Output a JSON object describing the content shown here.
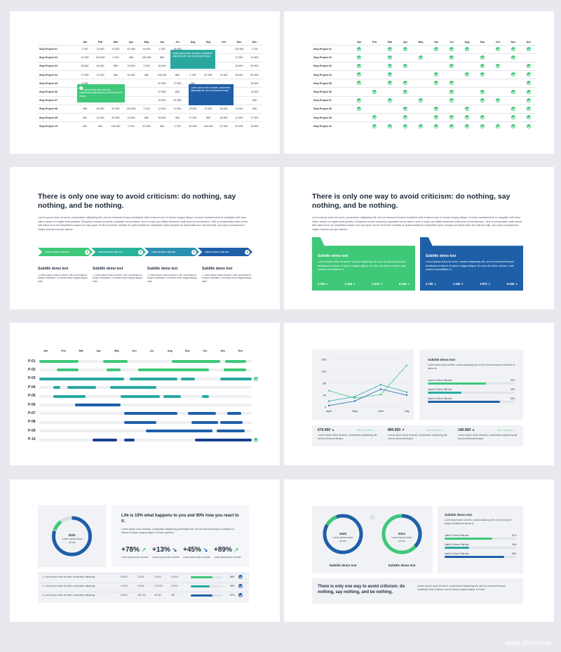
{
  "months": [
    "Jan",
    "Feb",
    "Mar",
    "Apr",
    "May",
    "Jun",
    "Jul",
    "Aug",
    "Sep",
    "Oct",
    "Nov",
    "Dec"
  ],
  "slide1": {
    "rows": [
      {
        "label": "Step Project 01",
        "cells": [
          "2.700",
          "13.900",
          "13.900",
          "87.905",
          "34.900",
          "2.700",
          "34.900",
          "",
          "",
          "",
          "134.900",
          "2.700"
        ]
      },
      {
        "label": "Step Project 02",
        "cells": [
          "12.900",
          "134.900",
          "2.700",
          "960",
          "134.900",
          "850",
          "2.700",
          "",
          "",
          "",
          "17.900",
          "12.900"
        ]
      },
      {
        "label": "Step Project 03",
        "cells": [
          "25.800",
          "34.900",
          "850",
          "13.900",
          "2.700",
          "34.900",
          "17.900",
          "",
          "",
          "",
          "34.900",
          "87.905"
        ]
      },
      {
        "label": "Step Project 04",
        "cells": [
          "17.900",
          "12.900",
          "960",
          "34.900",
          "960",
          "134.900",
          "850",
          "2.700",
          "87.905",
          "13.900",
          "34.900",
          "87.905"
        ]
      },
      {
        "label": "Step Project 05",
        "cells": [
          "6.099",
          "",
          "",
          "",
          "",
          "87.905",
          "17.900",
          "960",
          "",
          "",
          "",
          "34.900"
        ]
      },
      {
        "label": "Step Project 06",
        "cells": [
          "23.900",
          "",
          "",
          "",
          "",
          "87.905",
          "850",
          "87.905",
          "",
          "",
          "",
          "13.900"
        ]
      },
      {
        "label": "Step Project 07",
        "cells": [
          "12.098",
          "",
          "",
          "",
          "",
          "34.900",
          "87.905",
          "87.905",
          "",
          "",
          "",
          "960"
        ]
      },
      {
        "label": "Step Project 08",
        "cells": [
          "456",
          "34.900",
          "87.905",
          "134.900",
          "2.700",
          "12.900",
          "12.900",
          "13.900",
          "12.900",
          "34.900",
          "13.900",
          "960"
        ]
      },
      {
        "label": "Step Project 09",
        "cells": [
          "300",
          "12.900",
          "87.905",
          "13.900",
          "960",
          "34.900",
          "960",
          "17.900",
          "850",
          "34.900",
          "12.900",
          "17.900"
        ]
      },
      {
        "label": "Step Project 10",
        "cells": [
          "450",
          "960",
          "134.900",
          "2.700",
          "87.905",
          "960",
          "2.700",
          "87.905",
          "134.900",
          "87.905",
          "87.905",
          "34.900"
        ]
      }
    ],
    "callout_a": "Lorem ipsum dolor sit amet, consectetur adipiscing elit, sed do eiusmod tempor",
    "callout_b": "Lorem ipsum dolor sit amet, consectetur adipiscing elit, sed do eiusmod tempor",
    "callout_c": "Lorem ipsum dolor sit amet, consectetur adipiscing elit, sed do eiusmod tempor"
  },
  "slide2": {
    "labels": [
      "Step Project 01",
      "Step Project 02",
      "Step Project 03",
      "Step Project 04",
      "Step Project 05",
      "Step Project 06",
      "Step Project 07",
      "Step Project 08",
      "Step Project 09",
      "Step Project 10"
    ],
    "checks": [
      [
        1,
        0,
        1,
        1,
        0,
        1,
        1,
        1,
        0,
        1,
        1,
        1
      ],
      [
        1,
        0,
        1,
        0,
        1,
        0,
        1,
        0,
        1,
        0,
        1,
        0
      ],
      [
        1,
        0,
        1,
        1,
        0,
        0,
        1,
        0,
        1,
        1,
        0,
        1
      ],
      [
        1,
        0,
        1,
        0,
        0,
        1,
        0,
        1,
        1,
        0,
        1,
        1
      ],
      [
        1,
        0,
        1,
        1,
        0,
        1,
        1,
        0,
        0,
        0,
        0,
        1
      ],
      [
        0,
        1,
        0,
        1,
        0,
        0,
        1,
        0,
        1,
        0,
        1,
        1
      ],
      [
        1,
        0,
        1,
        0,
        1,
        0,
        1,
        0,
        1,
        1,
        0,
        1
      ],
      [
        1,
        0,
        0,
        1,
        0,
        1,
        0,
        1,
        0,
        0,
        1,
        1
      ],
      [
        0,
        1,
        0,
        1,
        0,
        1,
        1,
        1,
        1,
        0,
        1,
        1
      ],
      [
        0,
        1,
        1,
        1,
        1,
        1,
        1,
        1,
        1,
        1,
        1,
        1
      ]
    ]
  },
  "headline": "There is only one way to avoid criticism: do nothing, say nothing, and be nothing.",
  "paragraph": "Lorem ipsum dolor sit amet, consectetur adipiscing elit, sed do eiusmod tempor incididunt velit ut labore non et dolore magna aliqua. Ut enim reprehenderit in voluptate velit esse cillum dolore eu fugiat nulla pariatur. Excepteur nosint occaecat cupidatat non proident, sunt in culpa qui officia deserunt mollit anim id est laborum. Sed ut perspiciatis unde omnis iste natus error sit voluptatem seque non quo quae ab illo inventore veritatis et quasi architecto voluptatem quia voluptas sit aspernatur aut odit aut fugit, sed quia consequuntur magni dolores eos qui ratione.",
  "slide3": {
    "steps": [
      {
        "label": "Label 01 Demo Title text",
        "num": "1"
      },
      {
        "label": "Label 02 Demo Title text",
        "num": "2"
      },
      {
        "label": "Label 03 Demo Title text",
        "num": "3"
      },
      {
        "label": "Label 04 Demo Title text",
        "num": "4"
      }
    ],
    "subtitle": "Subtitle demo text",
    "bullets": "• Lorem ipsum dolor sit amet • Elit, sed eiusmod tempor incididunt • Ut labore dolor magna aliqua enim"
  },
  "slide4": {
    "subtitle": "Subtitle demo text",
    "body": "Lorem ipsum dolor sit amet, constur adipiscing elit, sed do eiusmod tempor incididunt ut labore et dolore magna aliqua. Ut enim ad minim veniam, quis nostrud exercitation ul.",
    "body_b": "Lorem ipsum dolor sit amet, constur adipiscing elit, sed do eiusmod tempor incididunt ut labore et dolore magna aliqua. Ut enim ad minim veniam, quis nostrud exercitation ul.",
    "nums": [
      "2.700 ↘",
      "1.180 ↗",
      "3.970 ↗",
      "9.150 ↘"
    ]
  },
  "slide5": {
    "labels": [
      "P-01",
      "P-02",
      "P-03",
      "P-04",
      "P-05",
      "P-06",
      "P-07",
      "P-08",
      "P-09",
      "P-10"
    ]
  },
  "slide6": {
    "chart_data": {
      "type": "line",
      "categories": [
        "April",
        "May",
        "June",
        "July"
      ],
      "yticks": [
        "0",
        "40",
        "80",
        "120",
        "160"
      ],
      "ylim": [
        0,
        160
      ],
      "series": [
        {
          "values": [
            55,
            30,
            42,
            140
          ],
          "color": "#3ec878"
        },
        {
          "values": [
            20,
            35,
            75,
            50
          ],
          "color": "#2aa8a0"
        },
        {
          "values": [
            5,
            20,
            60,
            40
          ],
          "color": "#1e5fa8"
        }
      ]
    },
    "subtitle": "Subtitle demo text",
    "body": "Lorem ipsum dolor sit amet, constur adipiscing elit, sed do eiusmod tempor incididunt ut labore et.",
    "bars": [
      {
        "label": "Label 01 Demo Title text",
        "pct": "67%",
        "value": 0.67,
        "color": "#3ec878"
      },
      {
        "label": "Label 01 Demo Title text",
        "pct": "39%",
        "value": 0.39,
        "color": "#2aa8a0"
      },
      {
        "label": "Label 01 Demo Title text",
        "pct": "83%",
        "value": 0.83,
        "color": "#1e5fa8"
      }
    ],
    "stats": [
      {
        "value": "670.000 ↘",
        "more": "More information →",
        "text": "Lorem ipsum dolor sit amet, consectetur adipiscing elit, sed do eiusmod tempor"
      },
      {
        "value": "890.000 ↗",
        "more": "More information →",
        "text": "Lorem ipsum dolor sit amet, consectetur adipiscing elit, sed do eiusmod tempor"
      },
      {
        "value": "140.000 ↘",
        "more": "More information →",
        "text": "Lorem ipsum dolor sit amet, consectetur adipiscing elit, sed do eiusmod tempor"
      }
    ]
  },
  "slide7": {
    "year": "2020",
    "ring_text": "Lorem ipsum dolor sit am",
    "quote": "Life is 10% what happens to you and 90% how you react to it.",
    "body": "Lorem ipsum dolor sit amet, consectetur adipiscing prehenderit elit, sed do eiusmod tempor incididunt ut labore et dolore magna aliqua. Ut enim reprehen",
    "kpis": [
      {
        "v": "+78%",
        "a": "↗",
        "t": "Lorem ipsum dolor sit amet"
      },
      {
        "v": "+13%",
        "a": "↘",
        "t": "Lorem ipsum dolor sit amet"
      },
      {
        "v": "+45%",
        "a": "↘",
        "t": "Lorem ipsum dolor sit amet"
      },
      {
        "v": "+89%",
        "a": "↗",
        "t": "Lorem ipsum dolor sit amet"
      }
    ],
    "table": [
      {
        "n": "1. Lorem ipsum dolor sit amet, consectetur adipiscing",
        "c": [
          "15.900",
          "23.900",
          "16.900",
          "23.900"
        ],
        "pct": "68%",
        "value": 0.68,
        "color": "#3ec878"
      },
      {
        "n": "2. Lorem ipsum dolor sit amet, consectetur adipiscing",
        "c": [
          "13.900",
          "14.900",
          "170.900",
          "12.900"
        ],
        "pct": "59%",
        "value": 0.59,
        "color": "#2aa8a0"
      },
      {
        "n": "3. Lorem ipsum dolor sit amet, consectetur adipiscing",
        "c": [
          "10.900",
          "135.750",
          "25.780",
          "980"
        ],
        "pct": "67%",
        "value": 0.67,
        "color": "#1e5fa8"
      }
    ]
  },
  "slide8": {
    "years": [
      "2020",
      "2021"
    ],
    "ring_text": "Lorem ipsum dolor sit am",
    "cap": "Subtitle demo text",
    "subtitle": "Subtitle demo text",
    "body": "Lorem ipsum dolor sit amet, constur adipiscing elit, sed do eiusmod tempor incididunt ut labore et.",
    "bars": [
      {
        "label": "Label 01 Demo Title text",
        "pct": "67%",
        "value": 0.67,
        "color": "#3ec878"
      },
      {
        "label": "Label 01 Demo Title text",
        "pct": "34%",
        "value": 0.34,
        "color": "#2aa8a0"
      },
      {
        "label": "Label 01 Demo Title text",
        "pct": "83%",
        "value": 0.83,
        "color": "#1e5fa8"
      }
    ],
    "headline": "There is only one way to avoid criticism: do nothing, say nothing, and be nothing.",
    "body2": "Lorem ipsum dolor sit amet, consectetur adipiscing elit, sed do eiusmod tempor incididunt velit ut labore non et dolore magna aliqua. Ut enim"
  },
  "watermark": "www.25xt.com",
  "colors": {
    "green": "#3ec878",
    "teal": "#2aa8a0",
    "blue": "#1e5fa8",
    "navy": "#1a3f8c",
    "panel": "#f1f2f6"
  }
}
